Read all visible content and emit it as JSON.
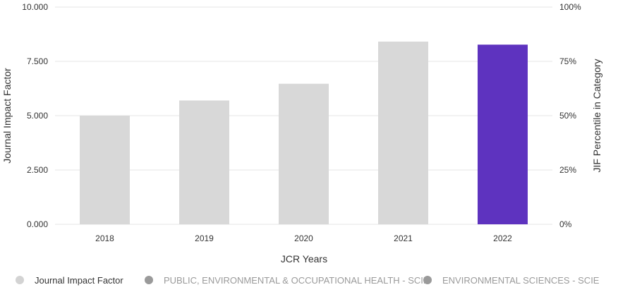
{
  "chart_data": {
    "type": "bar",
    "categories": [
      "2018",
      "2019",
      "2020",
      "2021",
      "2022"
    ],
    "values": [
      5.0,
      5.7,
      6.47,
      8.41,
      8.27
    ],
    "xlabel": "JCR Years",
    "ylabel": "Journal Impact Factor",
    "ylabel_right": "JIF Percentile in Category",
    "ylim": [
      0,
      10
    ],
    "yticks": [
      "0.000",
      "2.500",
      "5.000",
      "7.500",
      "10.000"
    ],
    "ytick_values": [
      0,
      2.5,
      5,
      7.5,
      10
    ],
    "yticks_right": [
      "0%",
      "25%",
      "50%",
      "75%",
      "100%"
    ],
    "grid": true,
    "highlight_index": 4,
    "colors": {
      "bar": "#d8d8d8",
      "highlight": "#5e33bf",
      "grid": "#e6e6e6",
      "dot_default": "#d3d3d3",
      "dot_series": "#9a9a9a"
    }
  },
  "legend": {
    "items": [
      {
        "label": "Journal Impact Factor",
        "dot_color": "#d3d3d3",
        "text_color": "#333333"
      },
      {
        "label": "PUBLIC, ENVIRONMENTAL & OCCUPATIONAL HEALTH - SCIE",
        "dot_color": "#9a9a9a",
        "text_color": "#9a9a9a"
      },
      {
        "label": "ENVIRONMENTAL SCIENCES - SCIE",
        "dot_color": "#9a9a9a",
        "text_color": "#9a9a9a"
      }
    ]
  }
}
